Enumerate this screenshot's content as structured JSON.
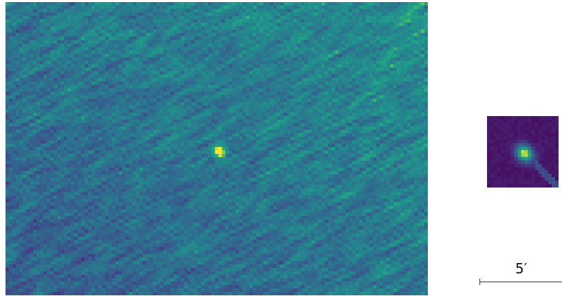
{
  "figure": {
    "scale_bar": {
      "label": "5′"
    },
    "main_image": {
      "colormap": "viridis",
      "source_at_fraction_of_field": [
        0.5,
        0.5
      ]
    },
    "cutout_image": {
      "colormap": "viridis"
    },
    "colors": {
      "viridis_low": "#440154",
      "viridis_mid": "#21918c",
      "viridis_high": "#fde725"
    }
  }
}
